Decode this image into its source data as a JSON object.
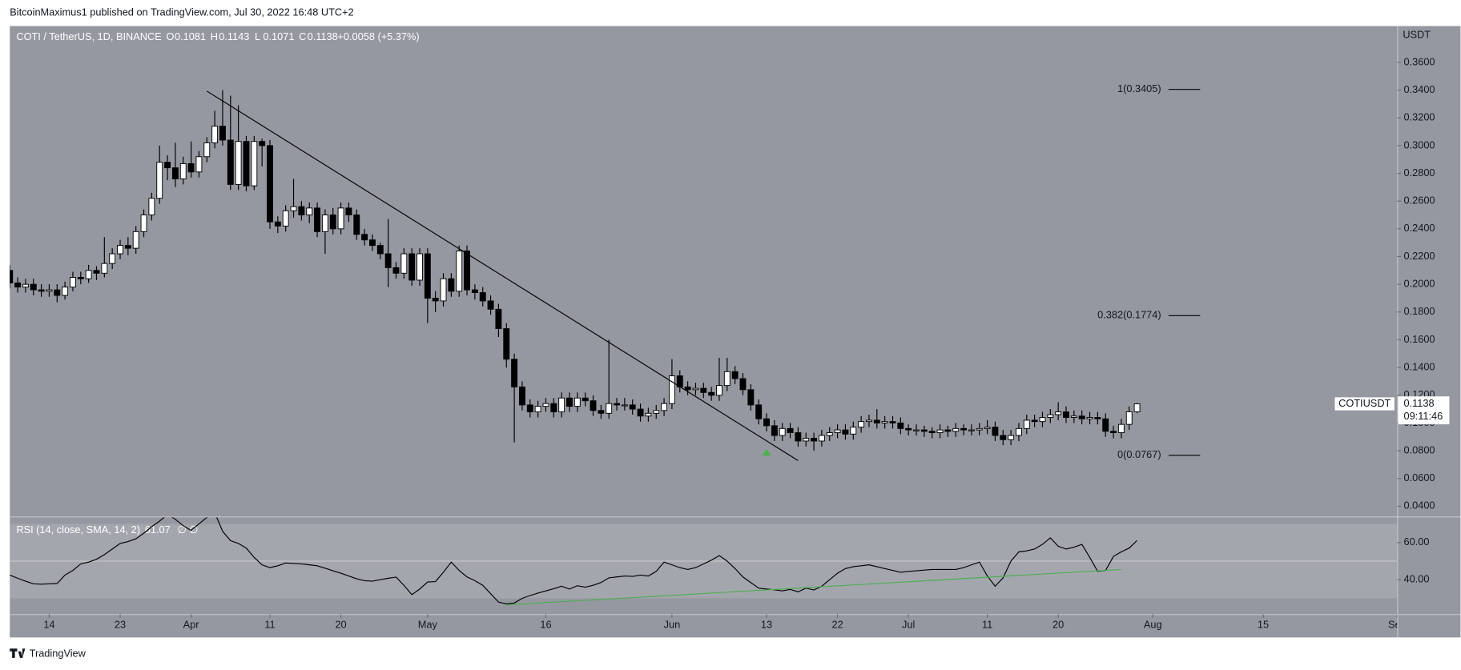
{
  "page": {
    "published": "BitcoinMaximus1 published on TradingView.com, Jul 30, 2022 16:48 UTC+2",
    "footer": "TradingView"
  },
  "chart_data": {
    "type": "candlestick",
    "title": "COTI / TetherUS, 1D, BINANCE",
    "ohlc_legend": [
      {
        "label": "O",
        "value": 0.1081
      },
      {
        "label": "H",
        "value": 0.1143
      },
      {
        "label": "L",
        "value": 0.1071
      },
      {
        "label": "C",
        "value": 0.1138
      }
    ],
    "change": "+0.0058 (+5.37%)",
    "x": [
      "2022-03-09",
      "2022-03-10",
      "2022-03-11",
      "2022-03-12",
      "2022-03-13",
      "2022-03-14",
      "2022-03-15",
      "2022-03-16",
      "2022-03-17",
      "2022-03-18",
      "2022-03-19",
      "2022-03-20",
      "2022-03-21",
      "2022-03-22",
      "2022-03-23",
      "2022-03-24",
      "2022-03-25",
      "2022-03-26",
      "2022-03-27",
      "2022-03-28",
      "2022-03-29",
      "2022-03-30",
      "2022-03-31",
      "2022-04-01",
      "2022-04-02",
      "2022-04-03",
      "2022-04-04",
      "2022-04-05",
      "2022-04-06",
      "2022-04-07",
      "2022-04-08",
      "2022-04-09",
      "2022-04-10",
      "2022-04-11",
      "2022-04-12",
      "2022-04-13",
      "2022-04-14",
      "2022-04-15",
      "2022-04-16",
      "2022-04-17",
      "2022-04-18",
      "2022-04-19",
      "2022-04-20",
      "2022-04-21",
      "2022-04-22",
      "2022-04-23",
      "2022-04-24",
      "2022-04-25",
      "2022-04-26",
      "2022-04-27",
      "2022-04-28",
      "2022-04-29",
      "2022-04-30",
      "2022-05-01",
      "2022-05-02",
      "2022-05-03",
      "2022-05-04",
      "2022-05-05",
      "2022-05-06",
      "2022-05-07",
      "2022-05-08",
      "2022-05-09",
      "2022-05-10",
      "2022-05-11",
      "2022-05-12",
      "2022-05-13",
      "2022-05-14",
      "2022-05-15",
      "2022-05-16",
      "2022-05-17",
      "2022-05-18",
      "2022-05-19",
      "2022-05-20",
      "2022-05-21",
      "2022-05-22",
      "2022-05-23",
      "2022-05-24",
      "2022-05-25",
      "2022-05-26",
      "2022-05-27",
      "2022-05-28",
      "2022-05-29",
      "2022-05-30",
      "2022-05-31",
      "2022-06-01",
      "2022-06-02",
      "2022-06-03",
      "2022-06-04",
      "2022-06-05",
      "2022-06-06",
      "2022-06-07",
      "2022-06-08",
      "2022-06-09",
      "2022-06-10",
      "2022-06-11",
      "2022-06-12",
      "2022-06-13",
      "2022-06-14",
      "2022-06-15",
      "2022-06-16",
      "2022-06-17",
      "2022-06-18",
      "2022-06-19",
      "2022-06-20",
      "2022-06-21",
      "2022-06-22",
      "2022-06-23",
      "2022-06-24",
      "2022-06-25",
      "2022-06-26",
      "2022-06-27",
      "2022-06-28",
      "2022-06-29",
      "2022-06-30",
      "2022-07-01",
      "2022-07-02",
      "2022-07-03",
      "2022-07-04",
      "2022-07-05",
      "2022-07-06",
      "2022-07-07",
      "2022-07-08",
      "2022-07-09",
      "2022-07-10",
      "2022-07-11",
      "2022-07-12",
      "2022-07-13",
      "2022-07-14",
      "2022-07-15",
      "2022-07-16",
      "2022-07-17",
      "2022-07-18",
      "2022-07-19",
      "2022-07-20",
      "2022-07-21",
      "2022-07-22",
      "2022-07-23",
      "2022-07-24",
      "2022-07-25",
      "2022-07-26",
      "2022-07-27",
      "2022-07-28",
      "2022-07-29",
      "2022-07-30"
    ],
    "open": [
      0.21,
      0.201,
      0.198,
      0.2,
      0.196,
      0.195,
      0.196,
      0.192,
      0.198,
      0.205,
      0.204,
      0.21,
      0.208,
      0.215,
      0.222,
      0.228,
      0.226,
      0.238,
      0.25,
      0.262,
      0.288,
      0.284,
      0.276,
      0.287,
      0.281,
      0.292,
      0.302,
      0.314,
      0.304,
      0.272,
      0.303,
      0.271,
      0.303,
      0.3,
      0.245,
      0.242,
      0.253,
      0.256,
      0.25,
      0.255,
      0.238,
      0.25,
      0.24,
      0.255,
      0.25,
      0.236,
      0.232,
      0.228,
      0.222,
      0.212,
      0.208,
      0.222,
      0.203,
      0.222,
      0.19,
      0.188,
      0.204,
      0.195,
      0.224,
      0.196,
      0.194,
      0.188,
      0.182,
      0.168,
      0.146,
      0.126,
      0.113,
      0.108,
      0.112,
      0.114,
      0.108,
      0.118,
      0.112,
      0.118,
      0.116,
      0.109,
      0.107,
      0.114,
      0.113,
      0.113,
      0.11,
      0.105,
      0.107,
      0.109,
      0.114,
      0.134,
      0.126,
      0.124,
      0.125,
      0.122,
      0.12,
      0.127,
      0.137,
      0.132,
      0.124,
      0.113,
      0.103,
      0.098,
      0.091,
      0.096,
      0.093,
      0.087,
      0.089,
      0.087,
      0.091,
      0.093,
      0.095,
      0.092,
      0.097,
      0.101,
      0.102,
      0.1,
      0.101,
      0.1,
      0.096,
      0.095,
      0.095,
      0.094,
      0.093,
      0.095,
      0.094,
      0.096,
      0.095,
      0.095,
      0.096,
      0.097,
      0.091,
      0.088,
      0.091,
      0.096,
      0.102,
      0.101,
      0.104,
      0.106,
      0.108,
      0.104,
      0.105,
      0.103,
      0.104,
      0.103,
      0.094,
      0.093,
      0.099,
      0.1081
    ],
    "high": [
      0.214,
      0.205,
      0.204,
      0.204,
      0.2,
      0.2,
      0.2,
      0.202,
      0.209,
      0.209,
      0.214,
      0.213,
      0.234,
      0.226,
      0.232,
      0.234,
      0.242,
      0.254,
      0.266,
      0.3,
      0.293,
      0.302,
      0.292,
      0.303,
      0.296,
      0.306,
      0.325,
      0.34,
      0.336,
      0.329,
      0.307,
      0.307,
      0.305,
      0.304,
      0.249,
      0.257,
      0.276,
      0.26,
      0.259,
      0.259,
      0.254,
      0.255,
      0.259,
      0.259,
      0.254,
      0.24,
      0.236,
      0.23,
      0.247,
      0.216,
      0.226,
      0.226,
      0.226,
      0.226,
      0.195,
      0.208,
      0.208,
      0.228,
      0.228,
      0.2,
      0.198,
      0.192,
      0.186,
      0.172,
      0.15,
      0.13,
      0.117,
      0.116,
      0.118,
      0.118,
      0.122,
      0.122,
      0.122,
      0.122,
      0.12,
      0.113,
      0.16,
      0.118,
      0.118,
      0.117,
      0.114,
      0.111,
      0.113,
      0.118,
      0.146,
      0.138,
      0.13,
      0.129,
      0.129,
      0.126,
      0.147,
      0.147,
      0.141,
      0.136,
      0.128,
      0.117,
      0.107,
      0.102,
      0.1,
      0.1,
      0.097,
      0.093,
      0.093,
      0.095,
      0.097,
      0.099,
      0.099,
      0.101,
      0.105,
      0.106,
      0.11,
      0.105,
      0.105,
      0.104,
      0.099,
      0.099,
      0.098,
      0.097,
      0.099,
      0.098,
      0.1,
      0.099,
      0.099,
      0.1,
      0.102,
      0.101,
      0.095,
      0.095,
      0.1,
      0.106,
      0.106,
      0.108,
      0.11,
      0.115,
      0.112,
      0.109,
      0.109,
      0.108,
      0.108,
      0.107,
      0.098,
      0.103,
      0.112,
      0.1143
    ],
    "low": [
      0.197,
      0.194,
      0.194,
      0.192,
      0.191,
      0.191,
      0.187,
      0.189,
      0.195,
      0.2,
      0.201,
      0.203,
      0.205,
      0.211,
      0.218,
      0.221,
      0.222,
      0.234,
      0.246,
      0.258,
      0.275,
      0.27,
      0.272,
      0.277,
      0.277,
      0.288,
      0.298,
      0.3,
      0.268,
      0.268,
      0.267,
      0.268,
      0.285,
      0.24,
      0.237,
      0.238,
      0.248,
      0.246,
      0.244,
      0.234,
      0.222,
      0.236,
      0.236,
      0.245,
      0.232,
      0.228,
      0.224,
      0.218,
      0.198,
      0.204,
      0.204,
      0.199,
      0.199,
      0.172,
      0.18,
      0.184,
      0.191,
      0.191,
      0.192,
      0.189,
      0.184,
      0.178,
      0.162,
      0.14,
      0.086,
      0.109,
      0.104,
      0.104,
      0.108,
      0.104,
      0.104,
      0.108,
      0.108,
      0.112,
      0.105,
      0.103,
      0.103,
      0.109,
      0.109,
      0.106,
      0.101,
      0.101,
      0.103,
      0.105,
      0.11,
      0.122,
      0.12,
      0.12,
      0.118,
      0.116,
      0.116,
      0.123,
      0.128,
      0.12,
      0.109,
      0.099,
      0.094,
      0.087,
      0.087,
      0.089,
      0.083,
      0.083,
      0.08,
      0.083,
      0.087,
      0.089,
      0.088,
      0.088,
      0.093,
      0.097,
      0.096,
      0.096,
      0.096,
      0.092,
      0.091,
      0.091,
      0.09,
      0.089,
      0.089,
      0.09,
      0.09,
      0.091,
      0.091,
      0.091,
      0.092,
      0.087,
      0.084,
      0.084,
      0.087,
      0.092,
      0.097,
      0.097,
      0.1,
      0.102,
      0.1,
      0.1,
      0.099,
      0.099,
      0.099,
      0.09,
      0.089,
      0.089,
      0.095,
      0.1071
    ],
    "close": [
      0.201,
      0.198,
      0.2,
      0.196,
      0.195,
      0.196,
      0.192,
      0.198,
      0.205,
      0.204,
      0.21,
      0.208,
      0.215,
      0.222,
      0.228,
      0.226,
      0.238,
      0.25,
      0.262,
      0.288,
      0.284,
      0.276,
      0.287,
      0.281,
      0.292,
      0.302,
      0.314,
      0.304,
      0.272,
      0.303,
      0.271,
      0.303,
      0.3,
      0.245,
      0.242,
      0.253,
      0.256,
      0.25,
      0.255,
      0.238,
      0.25,
      0.24,
      0.255,
      0.25,
      0.236,
      0.232,
      0.228,
      0.222,
      0.212,
      0.208,
      0.222,
      0.203,
      0.222,
      0.19,
      0.188,
      0.204,
      0.195,
      0.224,
      0.196,
      0.194,
      0.188,
      0.182,
      0.168,
      0.146,
      0.126,
      0.113,
      0.108,
      0.112,
      0.114,
      0.108,
      0.118,
      0.112,
      0.118,
      0.116,
      0.109,
      0.107,
      0.114,
      0.113,
      0.113,
      0.11,
      0.105,
      0.107,
      0.109,
      0.114,
      0.134,
      0.126,
      0.124,
      0.125,
      0.122,
      0.12,
      0.127,
      0.137,
      0.132,
      0.124,
      0.113,
      0.103,
      0.098,
      0.091,
      0.096,
      0.093,
      0.087,
      0.089,
      0.087,
      0.091,
      0.093,
      0.095,
      0.092,
      0.097,
      0.101,
      0.102,
      0.1,
      0.101,
      0.1,
      0.096,
      0.095,
      0.095,
      0.094,
      0.093,
      0.095,
      0.094,
      0.096,
      0.095,
      0.095,
      0.096,
      0.097,
      0.091,
      0.088,
      0.091,
      0.096,
      0.102,
      0.101,
      0.104,
      0.106,
      0.108,
      0.104,
      0.105,
      0.103,
      0.104,
      0.103,
      0.094,
      0.093,
      0.099,
      0.1081,
      0.1138
    ],
    "xlim": [
      "2022-03-09",
      "2022-09-01"
    ],
    "xticks": [
      {
        "value": "2022-03-14",
        "label": "14"
      },
      {
        "value": "2022-03-23",
        "label": "23"
      },
      {
        "value": "2022-04-01",
        "label": "Apr"
      },
      {
        "value": "2022-04-11",
        "label": "11"
      },
      {
        "value": "2022-04-20",
        "label": "20"
      },
      {
        "value": "2022-05-01",
        "label": "May"
      },
      {
        "value": "2022-05-16",
        "label": "16"
      },
      {
        "value": "2022-06-01",
        "label": "Jun"
      },
      {
        "value": "2022-06-13",
        "label": "13"
      },
      {
        "value": "2022-06-22",
        "label": "22"
      },
      {
        "value": "2022-07-01",
        "label": "Jul"
      },
      {
        "value": "2022-07-11",
        "label": "11"
      },
      {
        "value": "2022-07-20",
        "label": "20"
      },
      {
        "value": "2022-08-01",
        "label": "Aug"
      },
      {
        "value": "2022-08-15",
        "label": "15"
      },
      {
        "value": "2022-09-01",
        "label": "Sep"
      }
    ],
    "ylim": [
      0.0326,
      0.3862
    ],
    "yticks": [
      {
        "value": 0.04,
        "label": "0.0400"
      },
      {
        "value": 0.06,
        "label": "0.0600"
      },
      {
        "value": 0.08,
        "label": "0.0800"
      },
      {
        "value": 0.1,
        "label": "0.1000"
      },
      {
        "value": 0.12,
        "label": "0.1200"
      },
      {
        "value": 0.14,
        "label": "0.1400"
      },
      {
        "value": 0.16,
        "label": "0.1600"
      },
      {
        "value": 0.18,
        "label": "0.1800"
      },
      {
        "value": 0.2,
        "label": "0.2000"
      },
      {
        "value": 0.22,
        "label": "0.2200"
      },
      {
        "value": 0.24,
        "label": "0.2400"
      },
      {
        "value": 0.26,
        "label": "0.2600"
      },
      {
        "value": 0.28,
        "label": "0.2800"
      },
      {
        "value": 0.3,
        "label": "0.3000"
      },
      {
        "value": 0.32,
        "label": "0.3200"
      },
      {
        "value": 0.34,
        "label": "0.3400"
      },
      {
        "value": 0.36,
        "label": "0.3600"
      }
    ],
    "y_axis_label": "USDT",
    "symbol": "COTIUSDT",
    "countdown": "09:11:46",
    "up_color": "#ffffff",
    "down_color": "#000000",
    "trendline": {
      "x": [
        "2022-04-03",
        "2022-06-17"
      ],
      "y": [
        0.3393,
        0.0729
      ],
      "color": "#000000"
    },
    "signal": {
      "x": "2022-06-13",
      "y": 0.0785,
      "color": "#4caf50"
    },
    "fib_levels": {
      "x": [
        "2022-08-03",
        "2022-08-07"
      ],
      "levels": [
        {
          "value": 0.3405,
          "label": "1(0.3405)"
        },
        {
          "value": 0.1774,
          "label": "0.382(0.1774)"
        },
        {
          "value": 0.0767,
          "label": "0(0.0767)"
        }
      ]
    },
    "rsi": {
      "type": "line",
      "title": "RSI (14, close, SMA, 14, 2)",
      "na": "∅ ∅",
      "color": "#000000",
      "values": [
        42.5,
        40.8,
        39.2,
        37.8,
        37.6,
        37.8,
        38,
        42.5,
        45,
        48.5,
        49.5,
        51,
        53.5,
        56.5,
        59.5,
        60.5,
        62,
        65,
        68.5,
        71.5,
        75,
        72.5,
        69,
        66.5,
        70,
        73.5,
        76,
        66,
        61,
        59.5,
        57,
        52,
        48,
        46.5,
        47.5,
        49,
        48.8,
        48.5,
        48,
        47.5,
        46.2,
        44.8,
        43.5,
        42,
        40.5,
        39.5,
        39.2,
        40,
        40.8,
        41.4,
        37,
        32,
        35,
        38.8,
        39,
        44,
        49.5,
        45,
        41.5,
        39.5,
        37,
        32.5,
        28,
        27,
        27.5,
        30,
        31.5,
        32.8,
        34,
        35.2,
        36.5,
        35,
        36.8,
        36,
        37,
        38.5,
        41,
        41.5,
        42,
        41.8,
        42.5,
        42,
        44.5,
        49.5,
        48,
        46.5,
        45.5,
        46.5,
        48.5,
        50.5,
        53,
        50,
        46,
        41.5,
        38.5,
        35.5,
        35,
        34.6,
        34,
        34.8,
        33.5,
        35.5,
        34.5,
        36.5,
        40,
        43.5,
        46,
        47,
        47.5,
        48,
        47,
        46,
        45,
        44,
        44.5,
        44.8,
        45.2,
        45.5,
        45.5,
        45.5,
        45.5,
        46.5,
        48,
        49.5,
        42,
        36.5,
        41,
        50,
        55,
        55.5,
        56.5,
        59,
        62.5,
        58,
        56.5,
        57.5,
        59,
        52,
        44.5,
        45,
        52.5,
        55,
        57,
        61.07
      ],
      "ylim": [
        21.5,
        74
      ],
      "yticks": [
        {
          "value": 40,
          "label": "40.00"
        },
        {
          "value": 60,
          "label": "60.00"
        }
      ],
      "band": [
        30,
        70
      ],
      "midline": 50,
      "trendline": {
        "x": [
          "2022-05-11",
          "2022-07-28"
        ],
        "y": [
          26.5,
          45.5
        ],
        "color": "#4caf50"
      }
    }
  }
}
